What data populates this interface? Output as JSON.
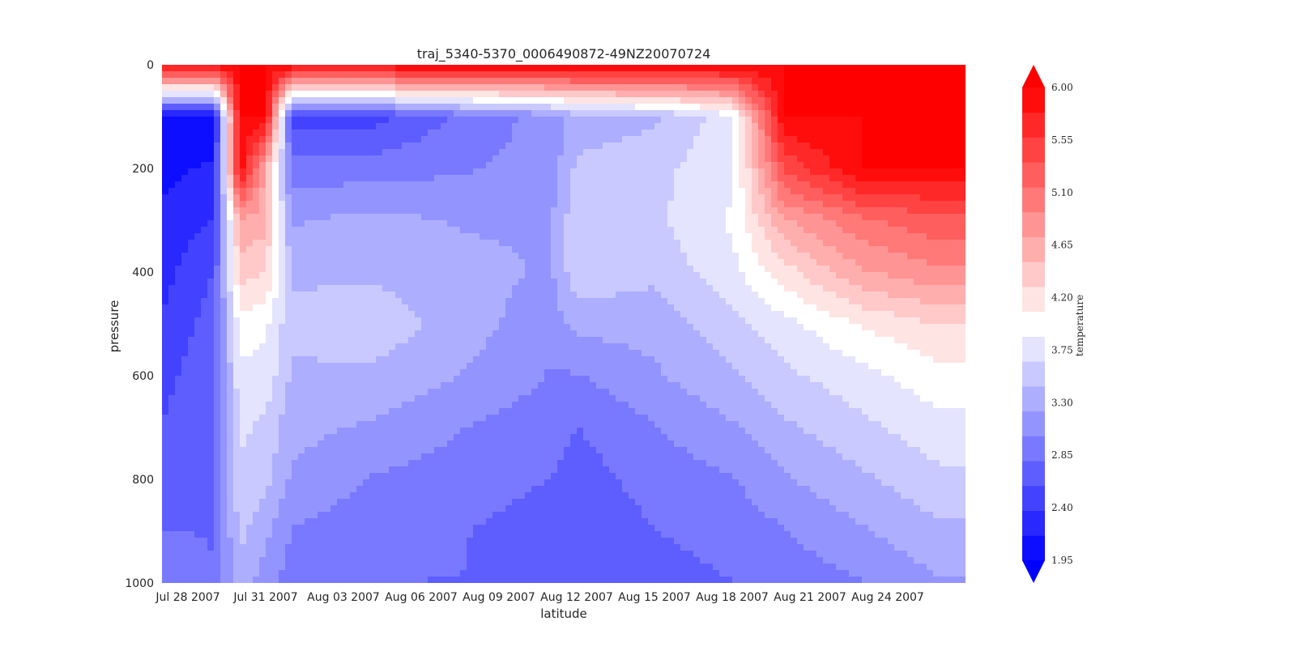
{
  "chart_data": {
    "type": "heatmap",
    "subtype": "filled-contour",
    "title": "traj_5340-5370_0006490872-49NZ20070724",
    "xlabel": "latitude",
    "ylabel": "pressure",
    "colorbar_label": "temperature",
    "x_tick_labels": [
      "Jul 28 2007",
      "Jul 31 2007",
      "Aug 03 2007",
      "Aug 06 2007",
      "Aug 09 2007",
      "Aug 12 2007",
      "Aug 15 2007",
      "Aug 18 2007",
      "Aug 21 2007",
      "Aug 24 2007"
    ],
    "x_tick_dates": [
      "2007-07-28",
      "2007-07-31",
      "2007-08-03",
      "2007-08-06",
      "2007-08-09",
      "2007-08-12",
      "2007-08-15",
      "2007-08-18",
      "2007-08-21",
      "2007-08-24"
    ],
    "x_range": [
      "2007-07-27",
      "2007-08-27"
    ],
    "y_ticks": [
      0,
      200,
      400,
      600,
      800,
      1000
    ],
    "y_range": [
      0,
      1000
    ],
    "y_inverted": true,
    "colorbar_ticks": [
      "6.00",
      "5.55",
      "5.10",
      "4.65",
      "4.20",
      "3.75",
      "3.30",
      "2.85",
      "2.40",
      "1.95"
    ],
    "color_range": [
      1.95,
      6.0
    ],
    "colorbar_extend": "both",
    "colormap": "bwr",
    "colors": {
      "cold": "#0000ff",
      "mid": "#ffffff",
      "warm": "#ff0000",
      "text": "#262626"
    },
    "grid": false,
    "profiles": [
      {
        "date": "2007-07-27",
        "temps": [
          6.0,
          2.0,
          2.1,
          2.2,
          2.3,
          2.4,
          2.5,
          2.6,
          2.7,
          2.8,
          2.9
        ]
      },
      {
        "date": "2007-07-29",
        "temps": [
          6.0,
          2.0,
          2.2,
          2.4,
          2.6,
          2.7,
          2.8,
          2.8,
          2.8,
          2.8,
          2.8
        ]
      },
      {
        "date": "2007-07-30",
        "temps": [
          6.0,
          6.0,
          6.0,
          4.7,
          4.4,
          4.0,
          3.8,
          3.7,
          3.6,
          3.5,
          3.4
        ]
      },
      {
        "date": "2007-07-31",
        "temps": [
          6.0,
          6.0,
          4.6,
          4.6,
          4.3,
          3.9,
          3.8,
          3.6,
          3.5,
          3.3,
          3.1
        ]
      },
      {
        "date": "2007-08-01",
        "temps": [
          6.0,
          2.5,
          2.9,
          3.2,
          3.4,
          3.5,
          3.4,
          3.3,
          3.2,
          3.0,
          2.9
        ]
      },
      {
        "date": "2007-08-04",
        "temps": [
          6.0,
          2.5,
          2.9,
          3.3,
          3.4,
          3.6,
          3.4,
          3.2,
          3.0,
          2.9,
          2.8
        ]
      },
      {
        "date": "2007-08-08",
        "temps": [
          6.0,
          2.9,
          3.0,
          3.2,
          3.3,
          3.3,
          3.2,
          3.0,
          2.9,
          2.8,
          2.8
        ]
      },
      {
        "date": "2007-08-11",
        "temps": [
          6.0,
          3.1,
          3.1,
          3.2,
          3.2,
          3.1,
          3.0,
          2.9,
          2.8,
          2.7,
          2.7
        ]
      },
      {
        "date": "2007-08-12",
        "temps": [
          6.0,
          3.3,
          3.5,
          3.6,
          3.6,
          3.3,
          3.0,
          2.8,
          2.7,
          2.6,
          2.6
        ]
      },
      {
        "date": "2007-08-15",
        "temps": [
          6.0,
          3.4,
          3.6,
          3.6,
          3.5,
          3.3,
          3.2,
          3.0,
          2.9,
          2.8,
          2.7
        ]
      },
      {
        "date": "2007-08-18",
        "temps": [
          6.0,
          3.8,
          3.8,
          3.9,
          3.8,
          3.6,
          3.4,
          3.2,
          3.0,
          2.9,
          2.8
        ]
      },
      {
        "date": "2007-08-20",
        "temps": [
          6.0,
          6.0,
          5.4,
          4.7,
          4.2,
          3.8,
          3.6,
          3.4,
          3.2,
          3.0,
          2.9
        ]
      },
      {
        "date": "2007-08-23",
        "temps": [
          6.0,
          6.0,
          6.0,
          5.1,
          4.7,
          4.1,
          3.8,
          3.6,
          3.4,
          3.2,
          3.0
        ]
      },
      {
        "date": "2007-08-26",
        "temps": [
          6.0,
          6.0,
          6.0,
          5.3,
          4.9,
          4.3,
          4.0,
          3.8,
          3.6,
          3.4,
          3.2
        ]
      }
    ]
  }
}
